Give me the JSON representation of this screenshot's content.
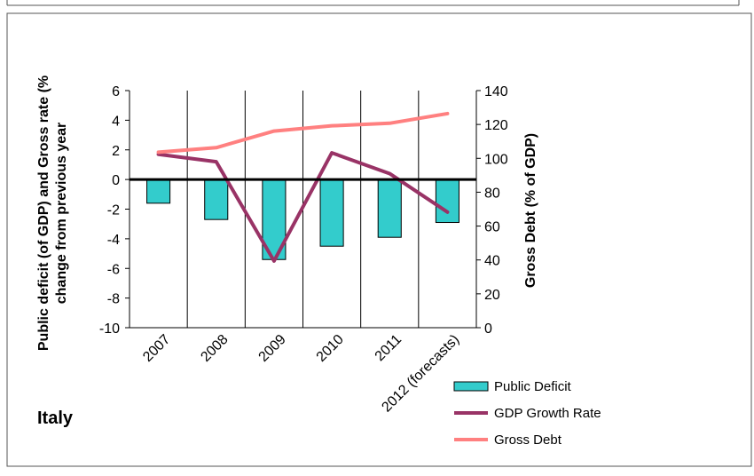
{
  "country_label": "Italy",
  "chart_data": {
    "type": "bar",
    "categories": [
      "2007",
      "2008",
      "2009",
      "2010",
      "2011",
      "2012 (forecasts)"
    ],
    "series": [
      {
        "name": "Public Deficit",
        "type": "bar",
        "axis": "left",
        "color": "#33cccc",
        "values": [
          -1.6,
          -2.7,
          -5.4,
          -4.5,
          -3.9,
          -2.9
        ]
      },
      {
        "name": "GDP Growth Rate",
        "type": "line",
        "axis": "left",
        "color": "#993366",
        "values": [
          1.7,
          1.2,
          -5.5,
          1.8,
          0.4,
          -2.2
        ]
      },
      {
        "name": "Gross Debt",
        "type": "line",
        "axis": "right",
        "color": "#ff8080",
        "values": [
          103.6,
          106.3,
          116.1,
          119.2,
          120.7,
          126.4
        ]
      }
    ],
    "ylabel": "Public deficit (of GDP) and Gross rate (% change from previous year",
    "ylabel_lines": [
      "Public deficit (of GDP) and Gross rate (%",
      "change from previous year"
    ],
    "y2label": "Gross Debt (% of GDP)",
    "ylim": [
      -10,
      6
    ],
    "y2lim": [
      0,
      140
    ],
    "yticks": [
      "6",
      "4",
      "2",
      "0",
      "-2",
      "-4",
      "-6",
      "-8",
      "-10"
    ],
    "y2ticks": [
      "140",
      "120",
      "100",
      "80",
      "60",
      "40",
      "20",
      "0"
    ],
    "grid": "vertical",
    "legend_position": "bottom-right"
  }
}
